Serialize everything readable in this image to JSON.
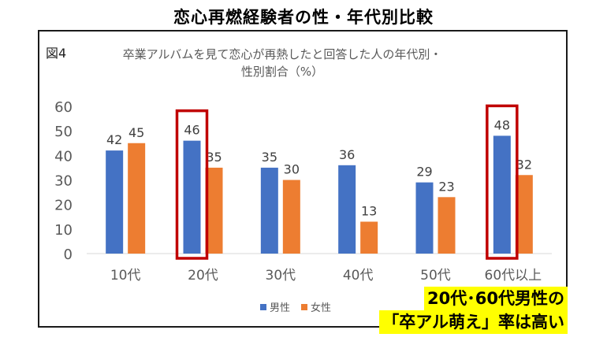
{
  "headline": "恋心再燃経験者の性・年代別比較",
  "figure_label": "図4",
  "callout": {
    "line1": "20代･60代男性の",
    "line2": "「卒アル萌え」率は高い"
  },
  "colors": {
    "male": "#4472C4",
    "female": "#ED7D31",
    "highlight": "#C00000"
  },
  "chart_data": {
    "type": "bar",
    "title": "卒業アルバムを見て恋心が再熱したと回答した人の年代別・性別割合（%）",
    "title_lines": [
      "卒業アルバムを見て恋心が再熱したと回答した人の年代別・",
      "性別割合（%）"
    ],
    "categories": [
      "10代",
      "20代",
      "30代",
      "40代",
      "50代",
      "60代以上"
    ],
    "series": [
      {
        "name": "男性",
        "values": [
          42,
          46,
          35,
          36,
          29,
          48
        ]
      },
      {
        "name": "女性",
        "values": [
          45,
          35,
          30,
          13,
          23,
          32
        ]
      }
    ],
    "ylim": [
      0,
      60
    ],
    "yticks": [
      0,
      10,
      20,
      30,
      40,
      50,
      60
    ],
    "grid": false,
    "legend": "bottom",
    "highlighted_categories": [
      "20代",
      "60代以上"
    ]
  }
}
